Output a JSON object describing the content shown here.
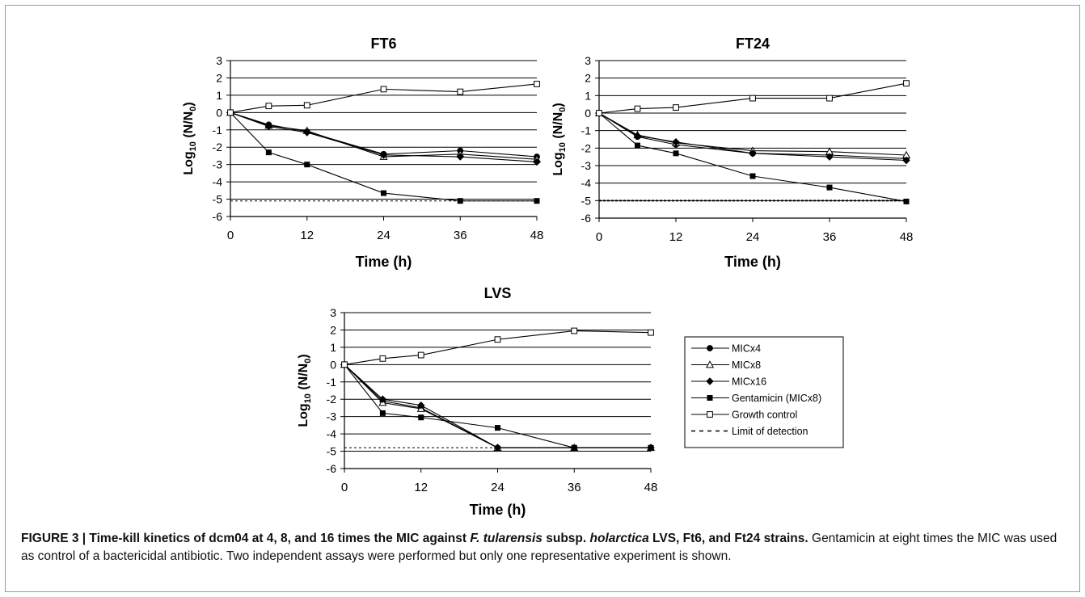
{
  "caption": {
    "lead_a": "FIGURE 3 | Time-kill kinetics of dcm04 at 4, 8, and 16 times the MIC against ",
    "lead_species": "F. tularensis",
    "lead_b": " subsp. ",
    "lead_subsp": "holarctica",
    "lead_c": " LVS, Ft6, and Ft24 strains.",
    "body": " Gentamicin at eight times the MIC was used as control of a bactericidal antibiotic. Two independent assays were performed but only one representative experiment is shown."
  },
  "legend": {
    "entries": [
      {
        "label": "MICx4",
        "marker": "filled-circle"
      },
      {
        "label": "MICx8",
        "marker": "open-triangle"
      },
      {
        "label": "MICx16",
        "marker": "filled-diamond"
      },
      {
        "label": "Gentamicin (MICx8)",
        "marker": "filled-square"
      },
      {
        "label": "Growth control",
        "marker": "open-square"
      },
      {
        "label": "Limit of detection",
        "marker": "dashed-line"
      }
    ]
  },
  "chart_data": [
    {
      "type": "line",
      "title": "FT6",
      "xlabel": "Time (h)",
      "ylabel_base": "Log",
      "ylabel_sub": "10",
      "ylabel_rest": " (N/N",
      "ylabel_sub2": "0",
      "ylabel_end": ")",
      "x": [
        0,
        6,
        12,
        24,
        36,
        48
      ],
      "xticks": [
        0,
        12,
        24,
        36,
        48
      ],
      "xlim": [
        0,
        48
      ],
      "ylim": [
        -6,
        3
      ],
      "yticks": [
        3,
        2,
        1,
        0,
        -1,
        -2,
        -3,
        -4,
        -5,
        -6
      ],
      "grid": true,
      "series": [
        {
          "name": "MICx4",
          "marker": "filled-circle",
          "values": [
            0,
            -0.7,
            -1.1,
            -2.4,
            -2.2,
            -2.55
          ]
        },
        {
          "name": "MICx8",
          "marker": "open-triangle",
          "values": [
            0,
            -0.75,
            -1.05,
            -2.55,
            -2.4,
            -2.7
          ]
        },
        {
          "name": "MICx16",
          "marker": "filled-diamond",
          "values": [
            0,
            -0.8,
            -1.15,
            -2.45,
            -2.55,
            -2.85
          ]
        },
        {
          "name": "Gentamicin (MICx8)",
          "marker": "filled-square",
          "values": [
            0,
            -2.3,
            -3.0,
            -4.65,
            -5.1,
            -5.1
          ]
        },
        {
          "name": "Growth control",
          "marker": "open-square",
          "values": [
            0,
            0.38,
            0.42,
            1.35,
            1.2,
            1.65
          ]
        }
      ],
      "limit_of_detection": -5.1
    },
    {
      "type": "line",
      "title": "FT24",
      "xlabel": "Time (h)",
      "ylabel_base": "Log",
      "ylabel_sub": "10",
      "ylabel_rest": " (N/N",
      "ylabel_sub2": "0",
      "ylabel_end": ")",
      "x": [
        0,
        6,
        12,
        24,
        36,
        48
      ],
      "xticks": [
        0,
        12,
        24,
        36,
        48
      ],
      "xlim": [
        0,
        48
      ],
      "ylim": [
        -6,
        3
      ],
      "yticks": [
        3,
        2,
        1,
        0,
        -1,
        -2,
        -3,
        -4,
        -5,
        -6
      ],
      "grid": true,
      "series": [
        {
          "name": "MICx4",
          "marker": "filled-circle",
          "values": [
            0,
            -1.35,
            -1.8,
            -2.3,
            -2.4,
            -2.6
          ]
        },
        {
          "name": "MICx8",
          "marker": "open-triangle",
          "values": [
            0,
            -1.25,
            -1.7,
            -2.15,
            -2.2,
            -2.4
          ]
        },
        {
          "name": "MICx16",
          "marker": "filled-diamond",
          "values": [
            0,
            -1.3,
            -1.65,
            -2.3,
            -2.5,
            -2.7
          ]
        },
        {
          "name": "Gentamicin (MICx8)",
          "marker": "filled-square",
          "values": [
            0,
            -1.85,
            -2.3,
            -3.6,
            -4.25,
            -5.05
          ]
        },
        {
          "name": "Growth control",
          "marker": "open-square",
          "values": [
            0,
            0.25,
            0.32,
            0.85,
            0.85,
            1.7
          ]
        }
      ],
      "limit_of_detection": -5.0
    },
    {
      "type": "line",
      "title": "LVS",
      "xlabel": "Time (h)",
      "ylabel_base": "Log",
      "ylabel_sub": "10",
      "ylabel_rest": " (N/N",
      "ylabel_sub2": "0",
      "ylabel_end": ")",
      "x": [
        0,
        6,
        12,
        24,
        36,
        48
      ],
      "xticks": [
        0,
        12,
        24,
        36,
        48
      ],
      "xlim": [
        0,
        48
      ],
      "ylim": [
        -6,
        3
      ],
      "yticks": [
        3,
        2,
        1,
        0,
        -1,
        -2,
        -3,
        -4,
        -5,
        -6
      ],
      "grid": true,
      "series": [
        {
          "name": "MICx4",
          "marker": "filled-circle",
          "values": [
            0,
            -2.1,
            -2.5,
            -4.8,
            -4.8,
            -4.8
          ]
        },
        {
          "name": "MICx8",
          "marker": "open-triangle",
          "values": [
            0,
            -2.2,
            -2.55,
            -4.8,
            -4.8,
            -4.8
          ]
        },
        {
          "name": "MICx16",
          "marker": "filled-diamond",
          "values": [
            0,
            -2.0,
            -2.35,
            -4.8,
            -4.8,
            -4.8
          ]
        },
        {
          "name": "Gentamicin (MICx8)",
          "marker": "filled-square",
          "values": [
            0,
            -2.8,
            -3.05,
            -3.65,
            -4.8,
            -4.8
          ]
        },
        {
          "name": "Growth control",
          "marker": "open-square",
          "values": [
            0,
            0.35,
            0.55,
            1.45,
            1.95,
            1.85
          ]
        }
      ],
      "limit_of_detection": -4.8
    }
  ]
}
